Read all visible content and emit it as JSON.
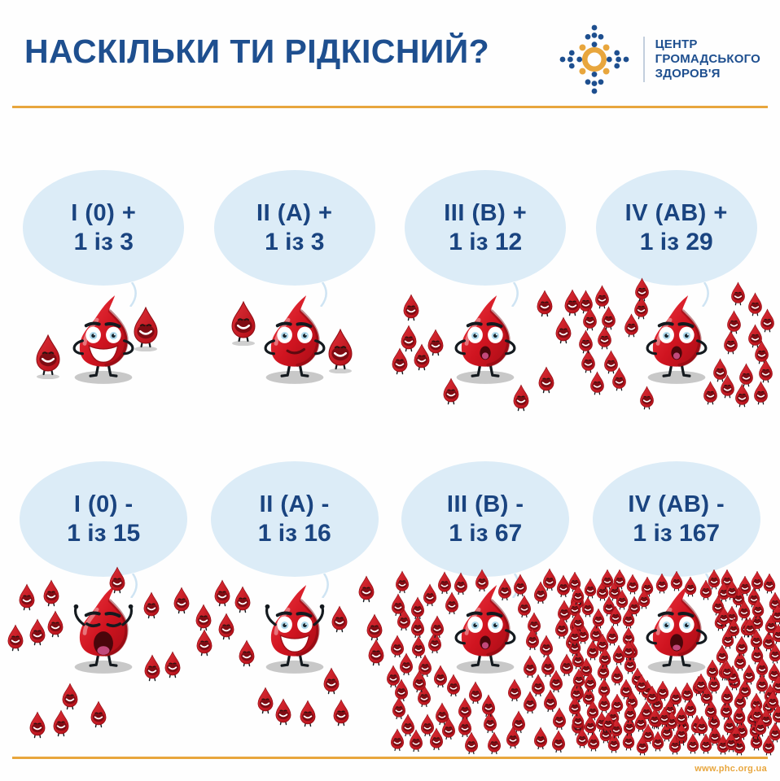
{
  "header": {
    "title": "НАСКІЛЬКИ ТИ РІДКІСНИЙ?",
    "logo": {
      "lines": [
        "ЦЕНТР",
        "ГРОМАДСЬКОГО",
        "ЗДОРОВ'Я"
      ]
    }
  },
  "footer": {
    "url": "www.phc.org.ua"
  },
  "icons": {
    "logo_mark": "dotted-sunflower",
    "big_drop": "blood-drop-mascot",
    "small_drop": "mini-blood-drop"
  },
  "colors": {
    "navy": "#1e4f8f",
    "bubble_text": "#1a4480",
    "bubble": "#dcecf7",
    "orange": "#e8a63d",
    "red": "#d01420"
  },
  "cells": [
    {
      "type_label": "I (0) +",
      "ratio_label": "1 із 3",
      "one_of": 3,
      "small_drops": 2,
      "expression": "grin"
    },
    {
      "type_label": "II (A) +",
      "ratio_label": "1 із 3",
      "one_of": 3,
      "small_drops": 2,
      "expression": "smirk"
    },
    {
      "type_label": "III (B) +",
      "ratio_label": "1 із 12",
      "one_of": 12,
      "small_drops": 11,
      "expression": "worried"
    },
    {
      "type_label": "IV (AB) +",
      "ratio_label": "1 із 29",
      "one_of": 29,
      "small_drops": 28,
      "expression": "surprised"
    },
    {
      "type_label": "I (0) -",
      "ratio_label": "1 із 15",
      "one_of": 15,
      "small_drops": 14,
      "expression": "yell"
    },
    {
      "type_label": "II (A) -",
      "ratio_label": "1 із 16",
      "one_of": 16,
      "small_drops": 15,
      "expression": "cheer"
    },
    {
      "type_label": "III (B) -",
      "ratio_label": "1 із 67",
      "one_of": 67,
      "small_drops": 66,
      "expression": "worried"
    },
    {
      "type_label": "IV (AB) -",
      "ratio_label": "1 із 167",
      "one_of": 167,
      "small_drops": 166,
      "expression": "shocked"
    }
  ]
}
